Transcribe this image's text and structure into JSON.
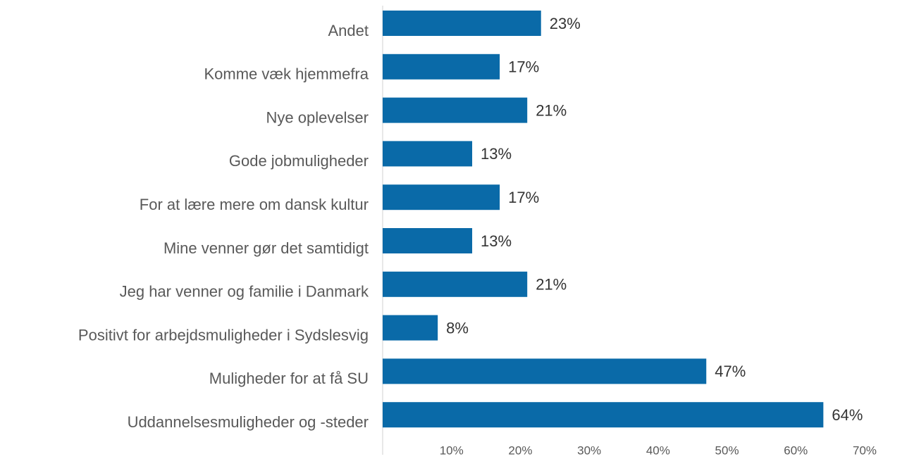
{
  "chart_data": {
    "type": "bar",
    "orientation": "horizontal",
    "categories": [
      "Andet",
      "Komme væk hjemmefra",
      "Nye oplevelser",
      "Gode jobmuligheder",
      "For at lære mere om dansk kultur",
      "Mine venner gør det samtidigt",
      "Jeg har venner og familie i Danmark",
      "Positivt for arbejdsmuligheder i Sydslesvig",
      "Muligheder for at få SU",
      "Uddannelsesmuligheder og -steder"
    ],
    "values": [
      23,
      17,
      21,
      13,
      17,
      13,
      21,
      8,
      47,
      64
    ],
    "value_labels": [
      "23%",
      "17%",
      "21%",
      "13%",
      "17%",
      "13%",
      "21%",
      "8%",
      "47%",
      "64%"
    ],
    "color": "#0a6aa8",
    "xlim": [
      0,
      70
    ],
    "xticks": [
      {
        "value": 10,
        "label": "10%"
      },
      {
        "value": 20,
        "label": "20%"
      },
      {
        "value": 30,
        "label": "30%"
      },
      {
        "value": 40,
        "label": "40%"
      },
      {
        "value": 50,
        "label": "50%"
      },
      {
        "value": 60,
        "label": "60%"
      },
      {
        "value": 70,
        "label": "70%"
      }
    ],
    "grid": false
  }
}
